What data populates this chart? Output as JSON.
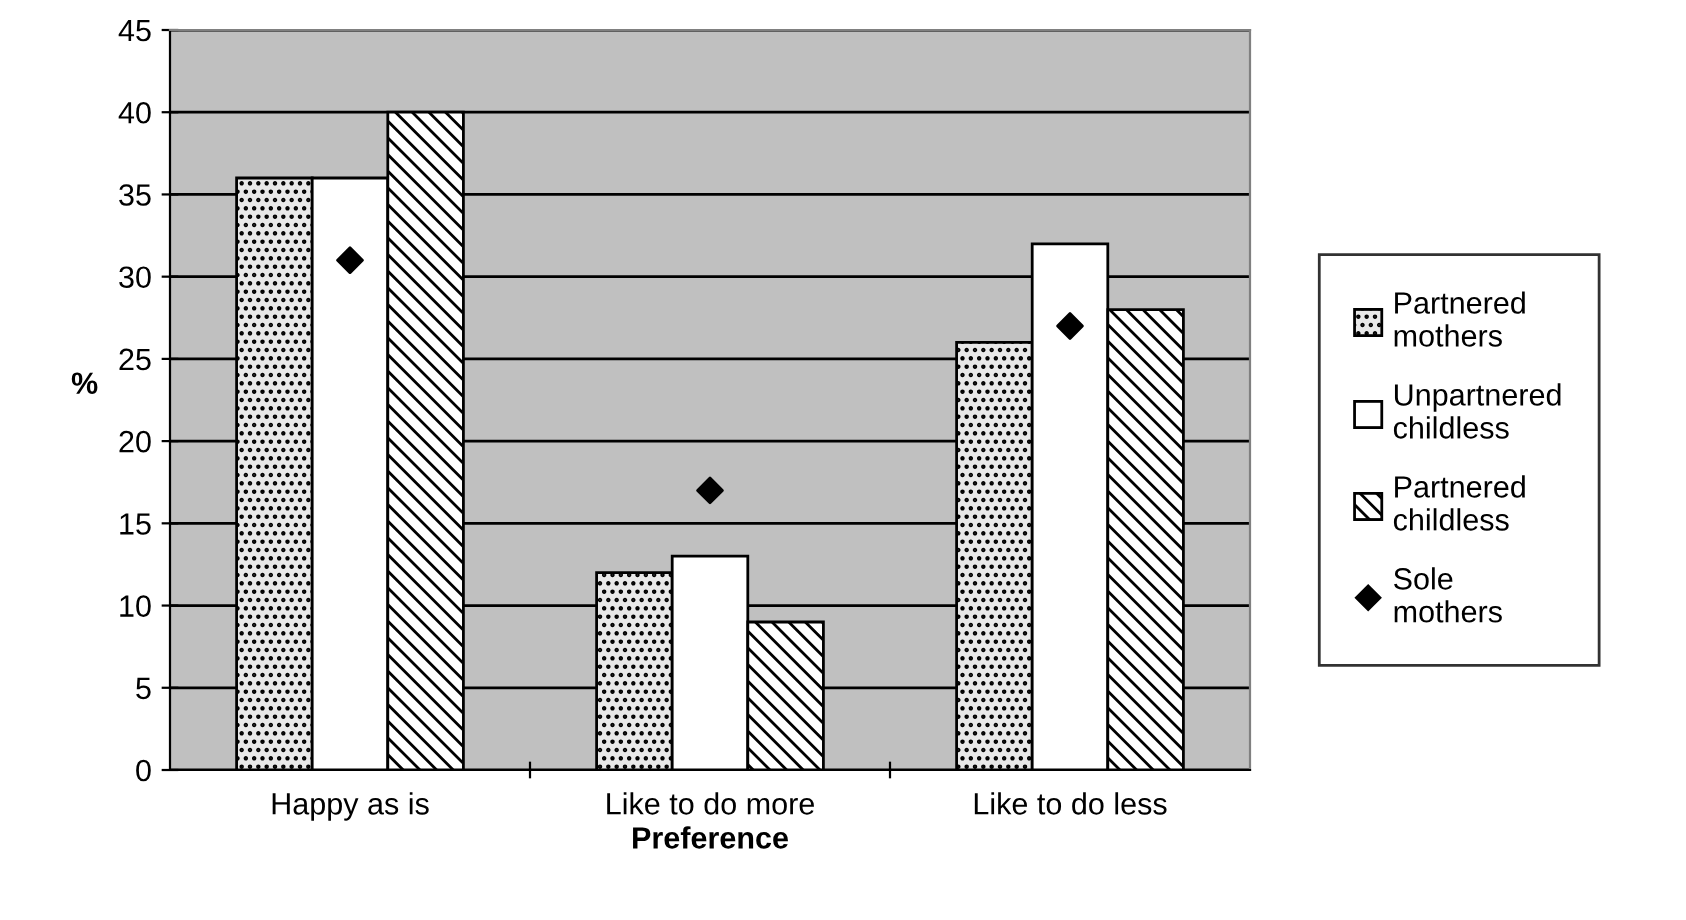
{
  "chart_data": {
    "type": "bar",
    "xlabel": "Preference",
    "ylabel": "%",
    "categories": [
      "Happy as is",
      "Like to do more",
      "Like to do less"
    ],
    "series": [
      {
        "name": "Partnered mothers",
        "color": "#e8e8e8",
        "values": [
          36,
          12,
          26
        ]
      },
      {
        "name": "Unpartnered childless",
        "color": "#ffffff",
        "values": [
          36,
          13,
          32
        ]
      },
      {
        "name": "Partnered childless",
        "color": "#ffffff",
        "values": [
          40,
          9,
          28
        ]
      },
      {
        "name": "Sole mothers",
        "type": "scatter",
        "marker": "diamond",
        "color": "#000000",
        "x": [
          "Happy as is",
          "Like to do more",
          "Like to do less"
        ],
        "values": [
          31,
          17,
          27
        ]
      }
    ],
    "ylim": [
      0,
      45
    ],
    "yticks": [
      0,
      5,
      10,
      15,
      20,
      25,
      30,
      35,
      40,
      45
    ],
    "grid": "y",
    "legend": "right"
  }
}
